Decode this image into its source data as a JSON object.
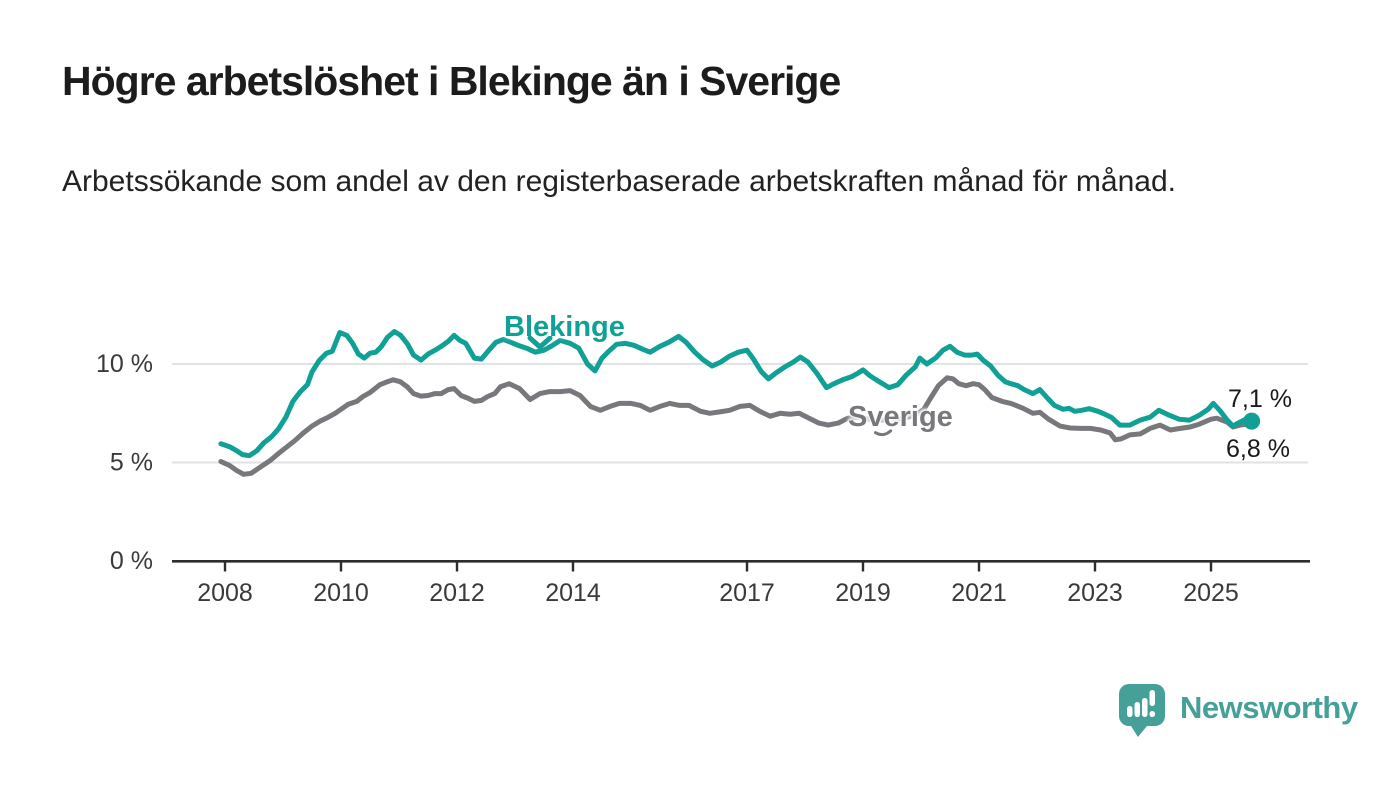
{
  "header": {
    "title": "Högre arbetslöshet i Blekinge än i Sverige",
    "subtitle": "Arbetssökande som andel av den registerbaserade arbetskraften månad för månad."
  },
  "annotations": {
    "series_label_blekinge": "Blekinge",
    "series_label_sverige": "Sverige",
    "end_label_blekinge": "7,1 %",
    "end_label_sverige": "6,8 %"
  },
  "icons": {
    "blekinge_pointer": "chevron-down",
    "sverige_pointer": "chevron-down",
    "brand_icon": "speech-bubble-bar-chart-exclamation"
  },
  "footer": {
    "brand": "Newsworthy"
  },
  "colors": {
    "blekinge_line": "#10a096",
    "sverige_line": "#78787c",
    "title_text": "#1c1c1c",
    "axis_line": "#2d2d2d",
    "axis_text": "#3a3a3a",
    "gridline": "#e2e2e2",
    "brand_teal": "#46a09a",
    "background": "#ffffff"
  },
  "chart_data": {
    "type": "line",
    "title": "Högre arbetslöshet i Blekinge än i Sverige",
    "subtitle": "Arbetssökande som andel av den registerbaserade arbetskraften månad för månad.",
    "unit": "%",
    "grid": true,
    "legend_position": "inline-labels",
    "x_axis": {
      "ticks": [
        "2008",
        "2010",
        "2012",
        "2014",
        "2017",
        "2019",
        "2021",
        "2023",
        "2025"
      ],
      "tick_years": [
        2008,
        2010,
        2012,
        2014,
        2017,
        2019,
        2021,
        2023,
        2025
      ],
      "range": [
        2007.9,
        2025.9
      ]
    },
    "y_axis": {
      "tick_labels": [
        "0 %",
        "5 %",
        "10 %"
      ],
      "tick_values": [
        0,
        5,
        10
      ],
      "gridlines": [
        5,
        10
      ],
      "range": [
        0,
        12.5
      ]
    },
    "series": [
      {
        "name": "Blekinge",
        "color": "#10a096",
        "end_label": "7,1 %",
        "last_value": 7.1,
        "points": [
          [
            2007.93,
            5.95
          ],
          [
            2008.08,
            5.8
          ],
          [
            2008.2,
            5.6
          ],
          [
            2008.3,
            5.4
          ],
          [
            2008.42,
            5.35
          ],
          [
            2008.55,
            5.6
          ],
          [
            2008.67,
            6.0
          ],
          [
            2008.8,
            6.3
          ],
          [
            2008.92,
            6.7
          ],
          [
            2009.05,
            7.3
          ],
          [
            2009.17,
            8.1
          ],
          [
            2009.3,
            8.6
          ],
          [
            2009.42,
            8.95
          ],
          [
            2009.5,
            9.6
          ],
          [
            2009.63,
            10.2
          ],
          [
            2009.75,
            10.55
          ],
          [
            2009.85,
            10.65
          ],
          [
            2009.98,
            11.6
          ],
          [
            2010.1,
            11.45
          ],
          [
            2010.2,
            11.05
          ],
          [
            2010.3,
            10.5
          ],
          [
            2010.4,
            10.3
          ],
          [
            2010.5,
            10.55
          ],
          [
            2010.6,
            10.6
          ],
          [
            2010.7,
            10.9
          ],
          [
            2010.8,
            11.35
          ],
          [
            2010.92,
            11.65
          ],
          [
            2011.03,
            11.45
          ],
          [
            2011.15,
            11.0
          ],
          [
            2011.25,
            10.45
          ],
          [
            2011.38,
            10.2
          ],
          [
            2011.5,
            10.5
          ],
          [
            2011.62,
            10.7
          ],
          [
            2011.73,
            10.9
          ],
          [
            2011.85,
            11.15
          ],
          [
            2011.95,
            11.45
          ],
          [
            2012.05,
            11.2
          ],
          [
            2012.15,
            11.05
          ],
          [
            2012.3,
            10.3
          ],
          [
            2012.42,
            10.25
          ],
          [
            2012.55,
            10.7
          ],
          [
            2012.67,
            11.1
          ],
          [
            2012.8,
            11.25
          ],
          [
            2012.93,
            11.1
          ],
          [
            2013.05,
            10.95
          ],
          [
            2013.2,
            10.8
          ],
          [
            2013.35,
            10.6
          ],
          [
            2013.5,
            10.7
          ],
          [
            2013.65,
            10.95
          ],
          [
            2013.78,
            11.2
          ],
          [
            2013.95,
            11.05
          ],
          [
            2014.1,
            10.8
          ],
          [
            2014.25,
            10.0
          ],
          [
            2014.38,
            9.65
          ],
          [
            2014.5,
            10.3
          ],
          [
            2014.6,
            10.6
          ],
          [
            2014.75,
            11.0
          ],
          [
            2014.9,
            11.05
          ],
          [
            2015.05,
            10.95
          ],
          [
            2015.2,
            10.75
          ],
          [
            2015.33,
            10.6
          ],
          [
            2015.5,
            10.9
          ],
          [
            2015.65,
            11.1
          ],
          [
            2015.82,
            11.4
          ],
          [
            2015.95,
            11.1
          ],
          [
            2016.1,
            10.6
          ],
          [
            2016.25,
            10.2
          ],
          [
            2016.4,
            9.9
          ],
          [
            2016.55,
            10.1
          ],
          [
            2016.7,
            10.4
          ],
          [
            2016.85,
            10.6
          ],
          [
            2017.0,
            10.7
          ],
          [
            2017.1,
            10.3
          ],
          [
            2017.25,
            9.6
          ],
          [
            2017.37,
            9.25
          ],
          [
            2017.5,
            9.55
          ],
          [
            2017.65,
            9.85
          ],
          [
            2017.8,
            10.1
          ],
          [
            2017.92,
            10.35
          ],
          [
            2018.05,
            10.1
          ],
          [
            2018.2,
            9.55
          ],
          [
            2018.37,
            8.8
          ],
          [
            2018.5,
            9.0
          ],
          [
            2018.65,
            9.2
          ],
          [
            2018.8,
            9.35
          ],
          [
            2018.92,
            9.55
          ],
          [
            2019.0,
            9.7
          ],
          [
            2019.12,
            9.4
          ],
          [
            2019.28,
            9.1
          ],
          [
            2019.45,
            8.8
          ],
          [
            2019.6,
            8.95
          ],
          [
            2019.75,
            9.45
          ],
          [
            2019.9,
            9.85
          ],
          [
            2019.98,
            10.3
          ],
          [
            2020.1,
            10.0
          ],
          [
            2020.25,
            10.3
          ],
          [
            2020.38,
            10.7
          ],
          [
            2020.5,
            10.9
          ],
          [
            2020.62,
            10.6
          ],
          [
            2020.75,
            10.45
          ],
          [
            2020.88,
            10.45
          ],
          [
            2020.97,
            10.5
          ],
          [
            2021.07,
            10.2
          ],
          [
            2021.2,
            9.9
          ],
          [
            2021.32,
            9.45
          ],
          [
            2021.45,
            9.1
          ],
          [
            2021.55,
            9.0
          ],
          [
            2021.67,
            8.9
          ],
          [
            2021.78,
            8.7
          ],
          [
            2021.93,
            8.5
          ],
          [
            2022.05,
            8.7
          ],
          [
            2022.17,
            8.3
          ],
          [
            2022.3,
            7.9
          ],
          [
            2022.45,
            7.7
          ],
          [
            2022.55,
            7.75
          ],
          [
            2022.65,
            7.6
          ],
          [
            2022.77,
            7.65
          ],
          [
            2022.9,
            7.73
          ],
          [
            2023.05,
            7.6
          ],
          [
            2023.17,
            7.45
          ],
          [
            2023.28,
            7.3
          ],
          [
            2023.43,
            6.9
          ],
          [
            2023.6,
            6.9
          ],
          [
            2023.78,
            7.15
          ],
          [
            2023.95,
            7.3
          ],
          [
            2024.1,
            7.65
          ],
          [
            2024.28,
            7.4
          ],
          [
            2024.45,
            7.2
          ],
          [
            2024.63,
            7.15
          ],
          [
            2024.8,
            7.4
          ],
          [
            2024.95,
            7.7
          ],
          [
            2025.04,
            8.0
          ],
          [
            2025.15,
            7.65
          ],
          [
            2025.28,
            7.15
          ],
          [
            2025.38,
            6.85
          ],
          [
            2025.5,
            7.05
          ],
          [
            2025.6,
            7.2
          ],
          [
            2025.7,
            7.1
          ]
        ]
      },
      {
        "name": "Sverige",
        "color": "#78787c",
        "end_label": "6,8 %",
        "last_value": 6.8,
        "points": [
          [
            2007.93,
            5.05
          ],
          [
            2008.08,
            4.85
          ],
          [
            2008.2,
            4.6
          ],
          [
            2008.32,
            4.4
          ],
          [
            2008.45,
            4.45
          ],
          [
            2008.6,
            4.75
          ],
          [
            2008.78,
            5.1
          ],
          [
            2008.92,
            5.45
          ],
          [
            2009.07,
            5.8
          ],
          [
            2009.2,
            6.1
          ],
          [
            2009.35,
            6.5
          ],
          [
            2009.5,
            6.85
          ],
          [
            2009.64,
            7.1
          ],
          [
            2009.78,
            7.3
          ],
          [
            2009.9,
            7.5
          ],
          [
            2010.0,
            7.7
          ],
          [
            2010.12,
            7.95
          ],
          [
            2010.27,
            8.1
          ],
          [
            2010.38,
            8.35
          ],
          [
            2010.5,
            8.55
          ],
          [
            2010.67,
            8.95
          ],
          [
            2010.8,
            9.1
          ],
          [
            2010.9,
            9.2
          ],
          [
            2011.02,
            9.1
          ],
          [
            2011.14,
            8.85
          ],
          [
            2011.25,
            8.5
          ],
          [
            2011.38,
            8.37
          ],
          [
            2011.5,
            8.4
          ],
          [
            2011.62,
            8.5
          ],
          [
            2011.73,
            8.5
          ],
          [
            2011.85,
            8.7
          ],
          [
            2011.95,
            8.75
          ],
          [
            2012.07,
            8.4
          ],
          [
            2012.2,
            8.25
          ],
          [
            2012.3,
            8.1
          ],
          [
            2012.42,
            8.15
          ],
          [
            2012.53,
            8.35
          ],
          [
            2012.65,
            8.5
          ],
          [
            2012.75,
            8.85
          ],
          [
            2012.9,
            9.0
          ],
          [
            2013.08,
            8.75
          ],
          [
            2013.26,
            8.2
          ],
          [
            2013.43,
            8.5
          ],
          [
            2013.6,
            8.6
          ],
          [
            2013.78,
            8.6
          ],
          [
            2013.95,
            8.65
          ],
          [
            2014.12,
            8.4
          ],
          [
            2014.3,
            7.85
          ],
          [
            2014.47,
            7.65
          ],
          [
            2014.64,
            7.85
          ],
          [
            2014.8,
            8.0
          ],
          [
            2015.0,
            8.0
          ],
          [
            2015.16,
            7.9
          ],
          [
            2015.33,
            7.65
          ],
          [
            2015.5,
            7.85
          ],
          [
            2015.67,
            8.0
          ],
          [
            2015.84,
            7.9
          ],
          [
            2016.0,
            7.9
          ],
          [
            2016.2,
            7.6
          ],
          [
            2016.36,
            7.5
          ],
          [
            2016.53,
            7.57
          ],
          [
            2016.7,
            7.65
          ],
          [
            2016.88,
            7.85
          ],
          [
            2017.05,
            7.9
          ],
          [
            2017.22,
            7.6
          ],
          [
            2017.4,
            7.35
          ],
          [
            2017.57,
            7.5
          ],
          [
            2017.74,
            7.45
          ],
          [
            2017.9,
            7.5
          ],
          [
            2018.07,
            7.25
          ],
          [
            2018.24,
            7.0
          ],
          [
            2018.4,
            6.9
          ],
          [
            2018.57,
            7.0
          ],
          [
            2018.74,
            7.25
          ],
          [
            2018.9,
            7.3
          ],
          [
            2019.1,
            7.2
          ],
          [
            2019.3,
            7.15
          ],
          [
            2019.5,
            7.2
          ],
          [
            2019.7,
            7.25
          ],
          [
            2019.9,
            7.4
          ],
          [
            2020.05,
            7.7
          ],
          [
            2020.15,
            8.2
          ],
          [
            2020.3,
            8.9
          ],
          [
            2020.45,
            9.3
          ],
          [
            2020.55,
            9.25
          ],
          [
            2020.65,
            9.0
          ],
          [
            2020.78,
            8.9
          ],
          [
            2020.9,
            9.0
          ],
          [
            2021.0,
            8.95
          ],
          [
            2021.1,
            8.7
          ],
          [
            2021.22,
            8.3
          ],
          [
            2021.4,
            8.1
          ],
          [
            2021.55,
            8.0
          ],
          [
            2021.76,
            7.75
          ],
          [
            2021.93,
            7.5
          ],
          [
            2022.05,
            7.55
          ],
          [
            2022.2,
            7.2
          ],
          [
            2022.4,
            6.85
          ],
          [
            2022.57,
            6.75
          ],
          [
            2022.75,
            6.73
          ],
          [
            2022.92,
            6.73
          ],
          [
            2023.1,
            6.65
          ],
          [
            2023.26,
            6.5
          ],
          [
            2023.35,
            6.15
          ],
          [
            2023.45,
            6.2
          ],
          [
            2023.6,
            6.4
          ],
          [
            2023.78,
            6.45
          ],
          [
            2023.95,
            6.73
          ],
          [
            2024.12,
            6.9
          ],
          [
            2024.3,
            6.65
          ],
          [
            2024.47,
            6.73
          ],
          [
            2024.64,
            6.8
          ],
          [
            2024.8,
            6.95
          ],
          [
            2025.0,
            7.2
          ],
          [
            2025.1,
            7.25
          ],
          [
            2025.28,
            7.05
          ],
          [
            2025.38,
            6.8
          ],
          [
            2025.5,
            6.9
          ],
          [
            2025.6,
            6.95
          ],
          [
            2025.7,
            6.8
          ]
        ]
      }
    ]
  }
}
